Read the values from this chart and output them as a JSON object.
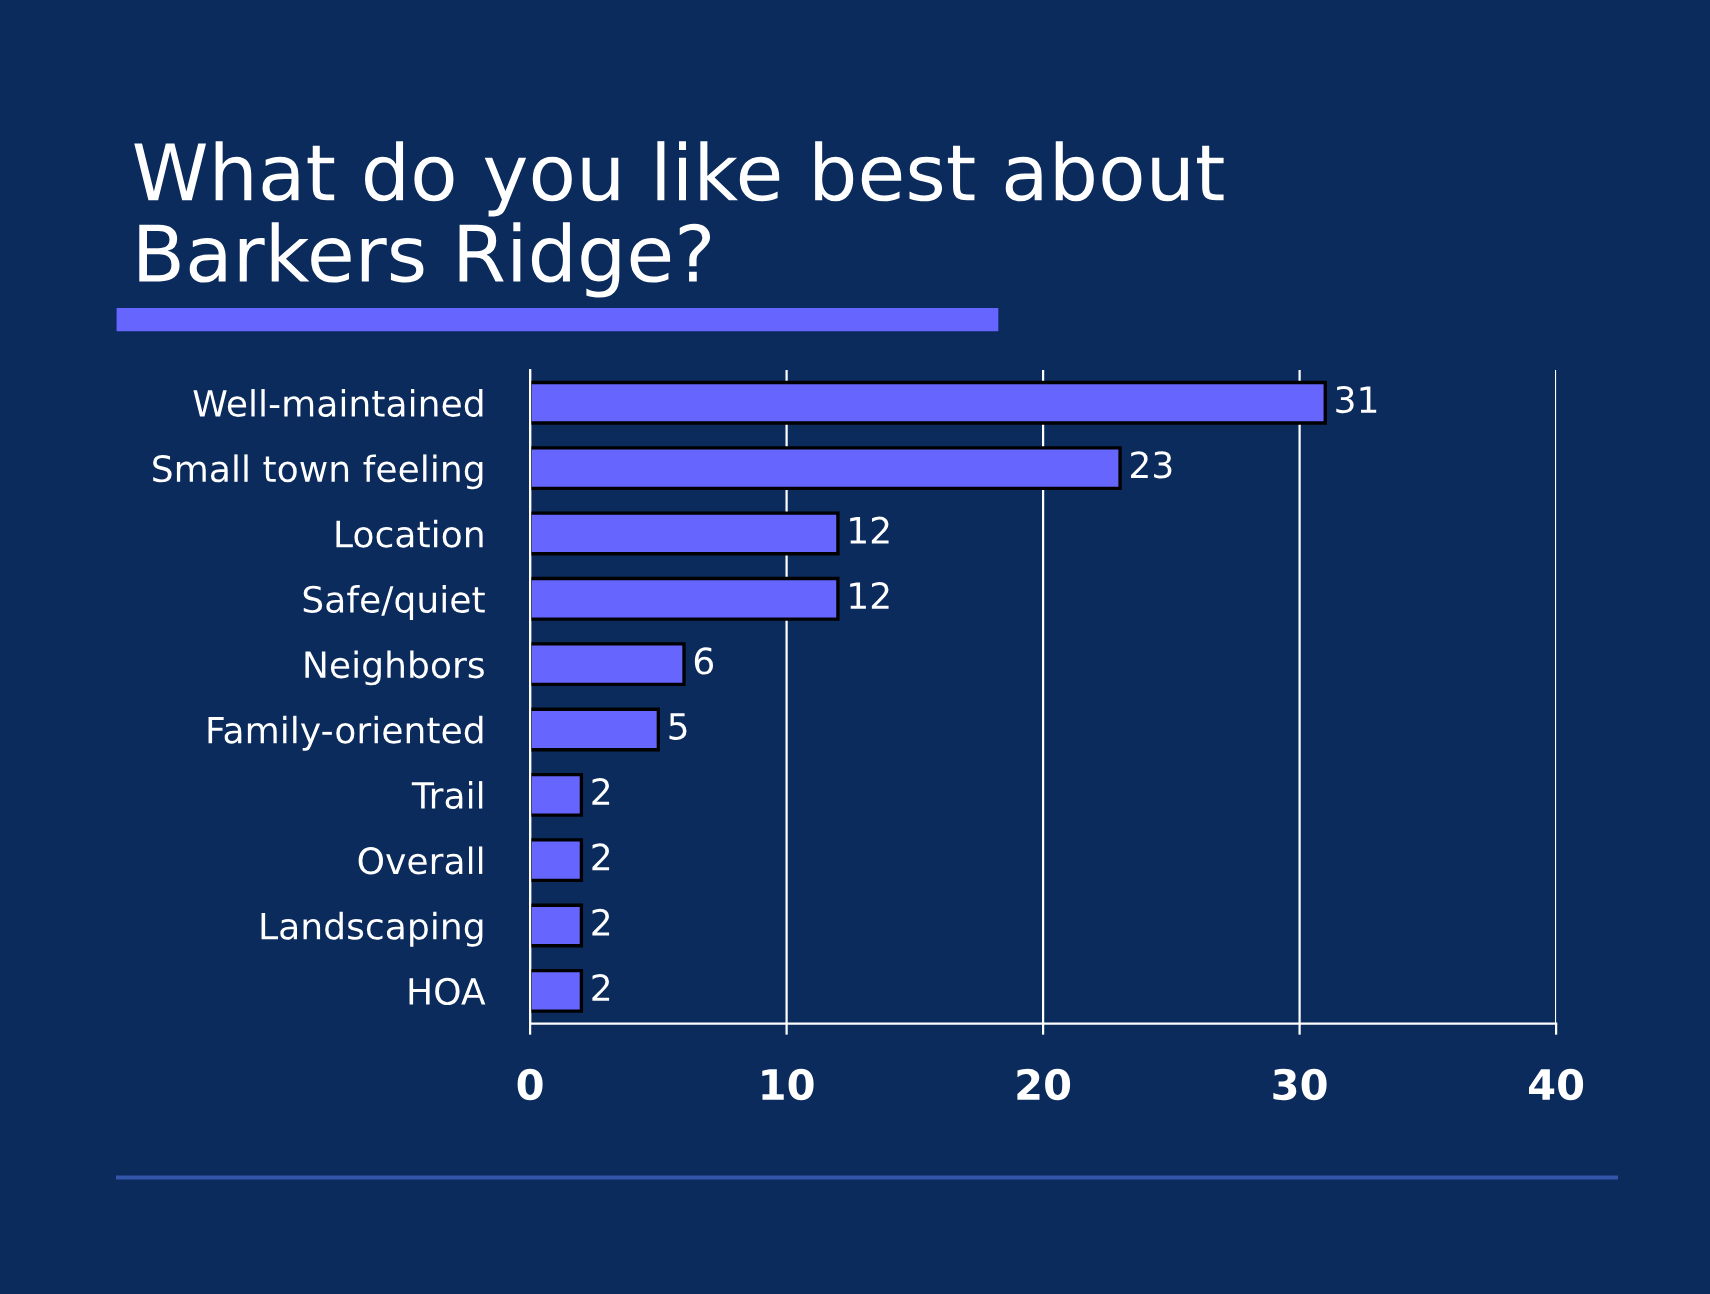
{
  "chart_data": {
    "type": "bar",
    "orientation": "horizontal",
    "title": "What do you like best about\nBarkers Ridge?",
    "categories": [
      "Well-maintained",
      "Small town feeling",
      "Location",
      "Safe/quiet",
      "Neighbors",
      "Family-oriented",
      "Trail",
      "Overall",
      "Landscaping",
      "HOA"
    ],
    "values": [
      31,
      23,
      12,
      12,
      6,
      5,
      2,
      2,
      2,
      2
    ],
    "color": "#6666ff",
    "xlim": [
      0,
      40
    ],
    "xticks": [
      0,
      10,
      20,
      30,
      40
    ],
    "grid": "x",
    "data_labels": true
  }
}
